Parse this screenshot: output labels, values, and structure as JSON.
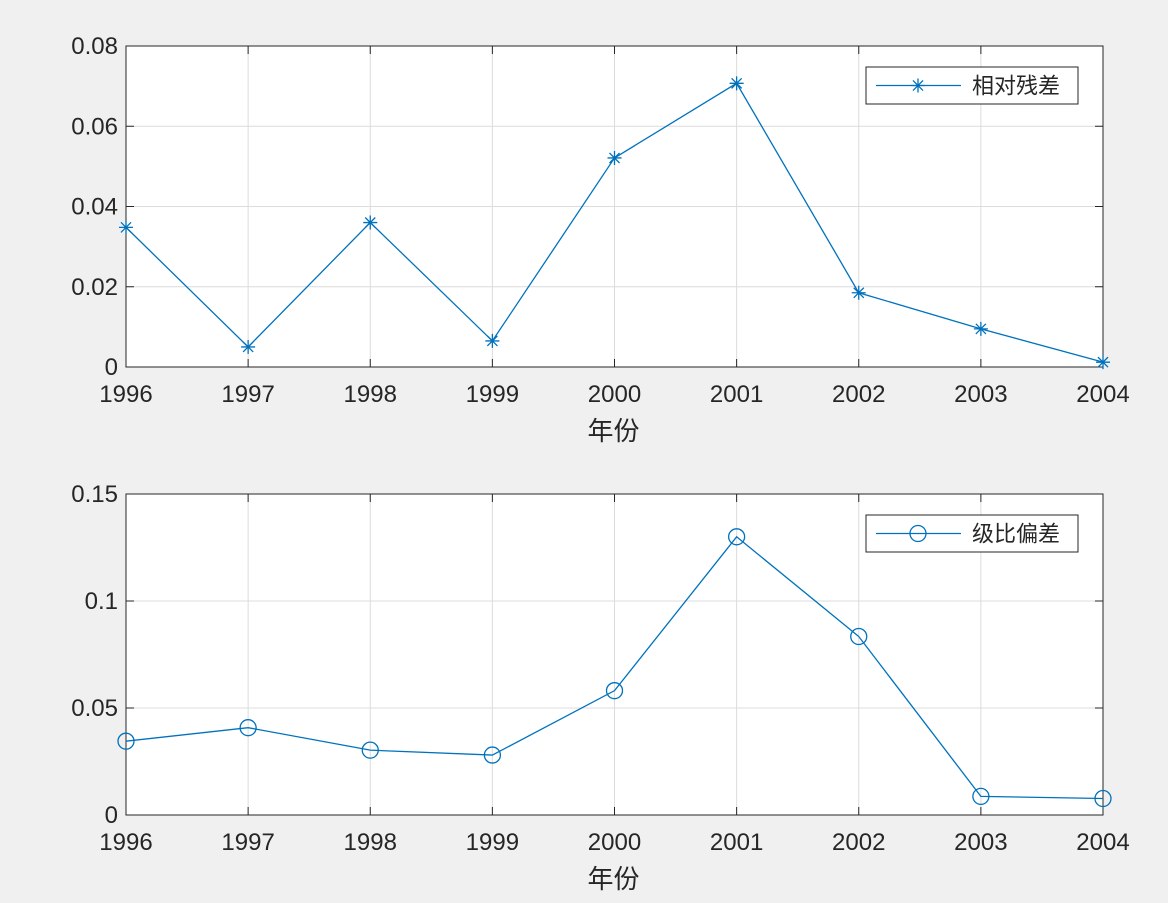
{
  "chart_data": [
    {
      "type": "line",
      "title": "",
      "xlabel": "年份",
      "ylabel": "",
      "x": [
        1996,
        1997,
        1998,
        1999,
        2000,
        2001,
        2002,
        2003,
        2004
      ],
      "x_ticks": [
        "1996",
        "1997",
        "1998",
        "1999",
        "2000",
        "2001",
        "2002",
        "2003",
        "2004"
      ],
      "xlim": [
        1996,
        2004
      ],
      "ylim": [
        0,
        0.08
      ],
      "y_ticks": [
        "0",
        "0.02",
        "0.04",
        "0.06",
        "0.08"
      ],
      "grid": true,
      "legend_position": "top-right",
      "series": [
        {
          "name": "相对残差",
          "marker": "asterisk",
          "color": "#0072bd",
          "values": [
            0.0348,
            0.005,
            0.036,
            0.0065,
            0.0521,
            0.0707,
            0.0185,
            0.0095,
            0.0012
          ]
        }
      ]
    },
    {
      "type": "line",
      "title": "",
      "xlabel": "年份",
      "ylabel": "",
      "x": [
        1996,
        1997,
        1998,
        1999,
        2000,
        2001,
        2002,
        2003,
        2004
      ],
      "x_ticks": [
        "1996",
        "1997",
        "1998",
        "1999",
        "2000",
        "2001",
        "2002",
        "2003",
        "2004"
      ],
      "xlim": [
        1996,
        2004
      ],
      "ylim": [
        0,
        0.15
      ],
      "y_ticks": [
        "0",
        "0.05",
        "0.1",
        "0.15"
      ],
      "grid": true,
      "legend_position": "top-right",
      "series": [
        {
          "name": "级比偏差",
          "marker": "circle",
          "color": "#0072bd",
          "values": [
            0.0345,
            0.0408,
            0.0303,
            0.028,
            0.0581,
            0.13,
            0.0834,
            0.0087,
            0.0077
          ]
        }
      ]
    }
  ]
}
